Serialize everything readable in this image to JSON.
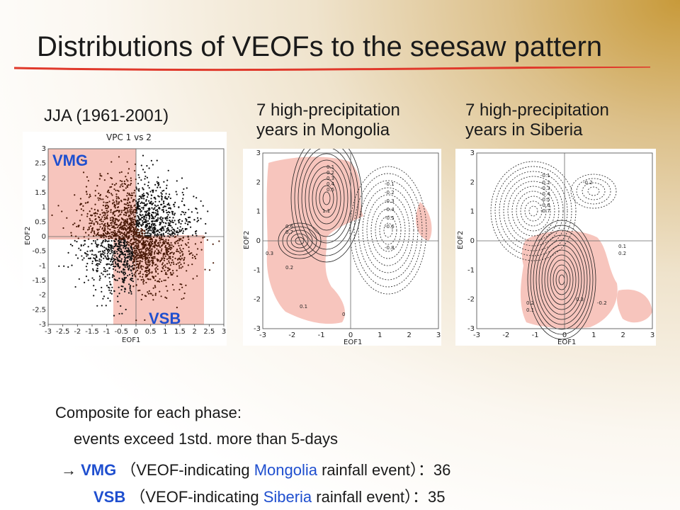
{
  "slide": {
    "title": "Distributions of VEOFs to the seesaw pattern"
  },
  "labels": {
    "period": "JJA (1961-2001)",
    "mongolia_line1": "7 high-precipitation",
    "mongolia_line2": "years in Mongolia",
    "siberia_line1": "7 high-precipitation",
    "siberia_line2": "years in Siberia"
  },
  "scatter_panel": {
    "plot_title": "VPC 1 vs 2",
    "xlabel": "EOF1",
    "ylabel": "EOF2",
    "region_vmg": "VMG",
    "region_vsb": "VSB",
    "x_ticks": [
      "-3",
      "-2.5",
      "-2",
      "-1.5",
      "-1",
      "-0.5",
      "0",
      "0.5",
      "1",
      "1.5",
      "2",
      "2.5",
      "3"
    ],
    "y_ticks": [
      "3",
      "2.5",
      "2",
      "1.5",
      "1",
      "0.5",
      "0",
      "-0.5",
      "-1",
      "-1.5",
      "-2",
      "-2.5",
      "-3"
    ]
  },
  "contour_mongolia": {
    "xlabel": "EOF1",
    "ylabel": "EOF2",
    "x_ticks": [
      "-3",
      "-2",
      "-1",
      "0",
      "1",
      "2",
      "3"
    ],
    "y_ticks": [
      "3",
      "2",
      "1",
      "0",
      "-1",
      "-2",
      "-3"
    ],
    "contour_labels": [
      "0.1",
      "0.2",
      "0.3",
      "0.4",
      "0.5",
      "0.6",
      "0.7",
      "1.1",
      "-0.1",
      "-0.2",
      "-0.3",
      "-0.4",
      "-0.5",
      "-0.6",
      "-0.8",
      "0.3",
      "0.2",
      "0.1",
      "0"
    ]
  },
  "contour_siberia": {
    "xlabel": "EOF1",
    "ylabel": "EOF2",
    "x_ticks": [
      "-3",
      "-2",
      "-1",
      "0",
      "1",
      "2",
      "3"
    ],
    "y_ticks": [
      "3",
      "2",
      "1",
      "0",
      "-1",
      "-2",
      "-3"
    ],
    "contour_labels": [
      "-0.1",
      "-0.2",
      "-0.3",
      "-0.4",
      "-0.5",
      "-0.6",
      "-0.7",
      "-0.2",
      "0.1",
      "0.2",
      "0.3",
      "0.1",
      "0.2",
      "-0.2"
    ]
  },
  "composite": {
    "line1": "Composite for each phase:",
    "line2": "events exceed 1std. more than 5-days",
    "arrow": "→",
    "vmg_tag": "VMG",
    "vmg_open": "（VEOF-indicating",
    "vmg_place": "Mongolia",
    "vmg_rest": "rainfall event）：36",
    "vsb_tag": "VSB",
    "vsb_open": "（VEOF-indicating",
    "vsb_place": "Siberia",
    "vsb_rest": "rainfall event）：35"
  },
  "colors": {
    "accent_blue": "#1f4fcf",
    "highlight_pink": "#f7c5bd",
    "scatter_brown": "#4a1a08",
    "title_rule": "#e0392b"
  }
}
